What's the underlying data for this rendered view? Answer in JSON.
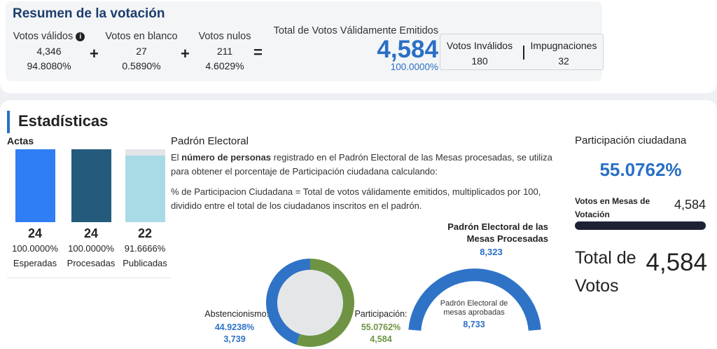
{
  "summary": {
    "title": "Resumen de la votación",
    "validos": {
      "label": "Votos válidos",
      "count": "4,346",
      "pct": "94.8080%"
    },
    "blanco": {
      "label": "Votos en blanco",
      "count": "27",
      "pct": "0.5890%"
    },
    "nulos": {
      "label": "Votos nulos",
      "count": "211",
      "pct": "4.6029%"
    },
    "plus": "+",
    "equals": "=",
    "info_glyph": "i",
    "total": {
      "label": "Total de Votos Válidamente Emitidos",
      "count": "4,584",
      "pct": "100.0000%"
    },
    "invalidos": {
      "label": "Votos Inválidos",
      "count": "180"
    },
    "impugnaciones": {
      "label": "Impugnaciones",
      "count": "32"
    }
  },
  "stats": {
    "title": "Estadísticas",
    "actas": {
      "title": "Actas",
      "bars": [
        {
          "count": "24",
          "pct": "100.0000%",
          "label": "Esperadas",
          "fill": 1.0,
          "color": "#2f7ef4"
        },
        {
          "count": "24",
          "pct": "100.0000%",
          "label": "Procesadas",
          "fill": 1.0,
          "color": "#245b7c"
        },
        {
          "count": "22",
          "pct": "91.6666%",
          "label": "Publicadas",
          "fill": 0.916666,
          "color": "#a9dbe6"
        }
      ]
    },
    "padron": {
      "title": "Padrón Electoral",
      "p1_pre": "El ",
      "p1_bold": "número de personas",
      "p1_post": " registrado en el Padrón Electoral de las Mesas procesadas, se utiliza para obtener el porcentaje de Participación ciudadana calculando:",
      "p2": "% de Participacion Ciudadana = Total de votos válidamente emitidos, multiplicados por 100, dividido entre el total de los ciudadanos inscritos en el padrón."
    },
    "donut": {
      "abstencion": {
        "label": "Abstencionismo:",
        "pct": "44.9238%",
        "count": "3,739",
        "fraction": 0.449238,
        "color": "#2f73c7"
      },
      "participacion": {
        "label": "Participación:",
        "pct": "55.0762%",
        "count": "4,584",
        "fraction": 0.550762,
        "color": "#6e9443"
      }
    },
    "gauge": {
      "title": "Padrón Electoral de las Mesas Procesadas",
      "total": "8,323",
      "inner_label": "Padrón Electoral de mesas aprobadas",
      "inner_count": "8,733",
      "color": "#2f73c7"
    },
    "participacion": {
      "title": "Participación ciudadana",
      "pct": "55.0762%",
      "votos_mesas_label": "Votos en Mesas de Votación",
      "votos_mesas_count": "4,584",
      "total_label": "Total de Votos",
      "total_count": "4,584"
    }
  }
}
